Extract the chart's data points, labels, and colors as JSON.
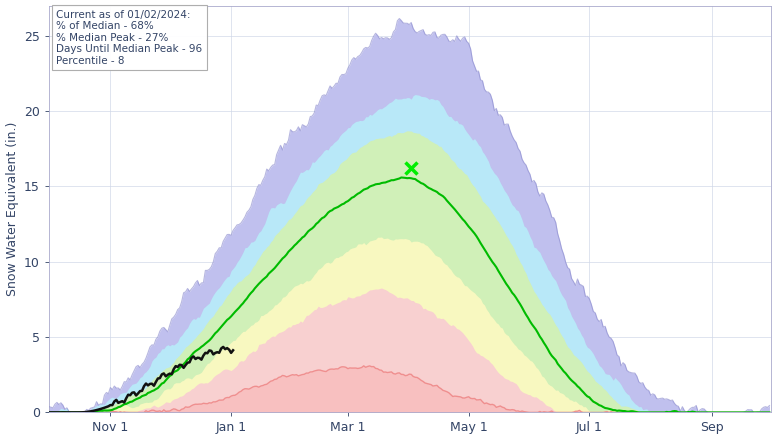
{
  "ylabel": "Snow Water Equivalent (in.)",
  "annotation_text": "Current as of 01/02/2024:\n% of Median - 68%\n% Median Peak - 27%\nDays Until Median Peak - 96\nPercentile - 8",
  "ylim": [
    0,
    27
  ],
  "yticks": [
    0,
    5,
    10,
    15,
    20,
    25
  ],
  "x_tick_days": [
    31,
    92,
    151,
    212,
    273,
    335
  ],
  "x_labels": [
    "Nov 1",
    "Jan 1",
    "Mar 1",
    "May 1",
    "Jul 1",
    "Sep"
  ],
  "background_color": "#ffffff",
  "grid_color": "#d0d8e8",
  "color_max": "#b8b8e8",
  "color_p90": "#b0e0f0",
  "color_p75": "#d8f0c0",
  "color_p25_inner": "#fffff0",
  "color_p10": "#f8d8d8",
  "color_min_line": "#ff9090",
  "median_color": "#00bb00",
  "current_color": "#111111",
  "marker_color": "#00ee00",
  "marker_day": 183,
  "marker_swe": 16.2,
  "current_end_day": 93,
  "n_days": 365
}
